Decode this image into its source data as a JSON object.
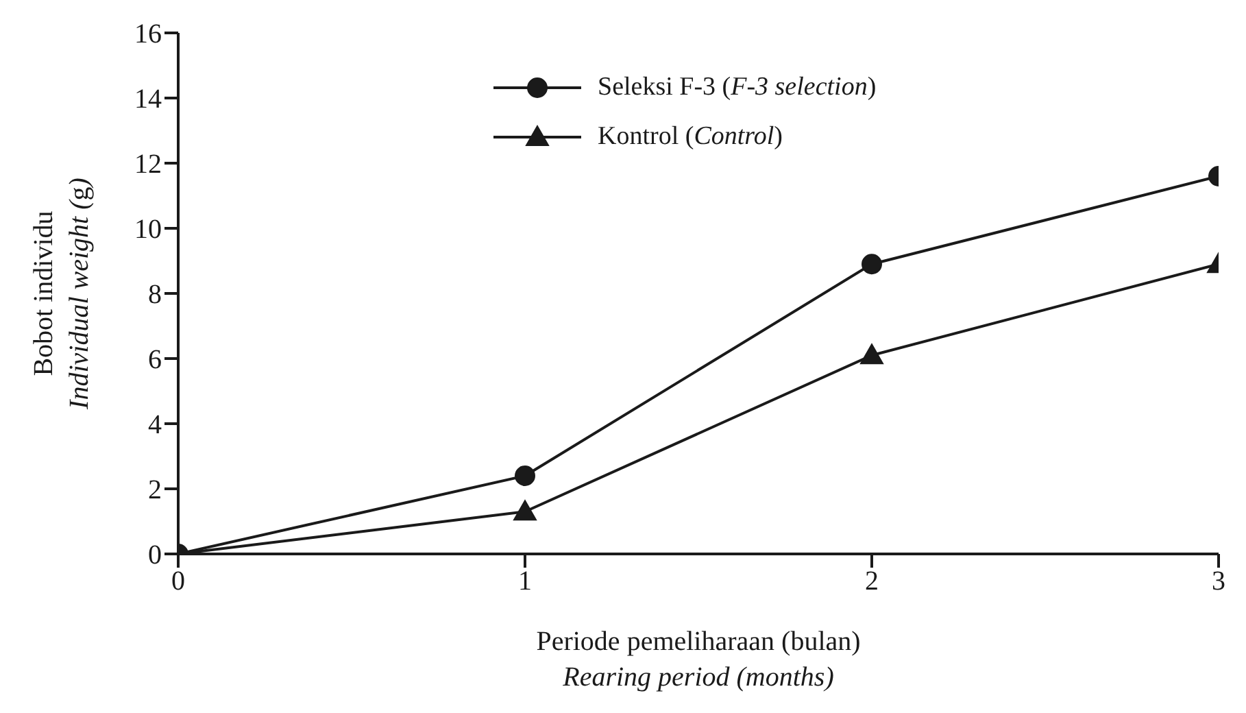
{
  "chart_data": {
    "type": "line",
    "xlabel": "Periode pemeliharaan (bulan)\nRearing period (months)",
    "ylabel": "Bobot individu\nIndividual weight (g)",
    "x": [
      0,
      1,
      2,
      3
    ],
    "series": [
      {
        "name": "Seleksi F-3 (F-3 selection)",
        "color": "#1a1a1a",
        "marker": "circle",
        "values": [
          0,
          2.4,
          8.9,
          11.6
        ]
      },
      {
        "name": "Kontrol (Control)",
        "color": "#1a1a1a",
        "marker": "triangle",
        "values": [
          0,
          1.3,
          6.1,
          8.9
        ]
      }
    ],
    "xlim": [
      0,
      3
    ],
    "xticks": [
      0,
      1,
      2,
      3
    ],
    "ylim": [
      0,
      16
    ],
    "yticks": [
      0,
      2,
      4,
      6,
      8,
      10,
      12,
      14,
      16
    ],
    "grid": false,
    "legend": "top",
    "line_style": "solid"
  }
}
